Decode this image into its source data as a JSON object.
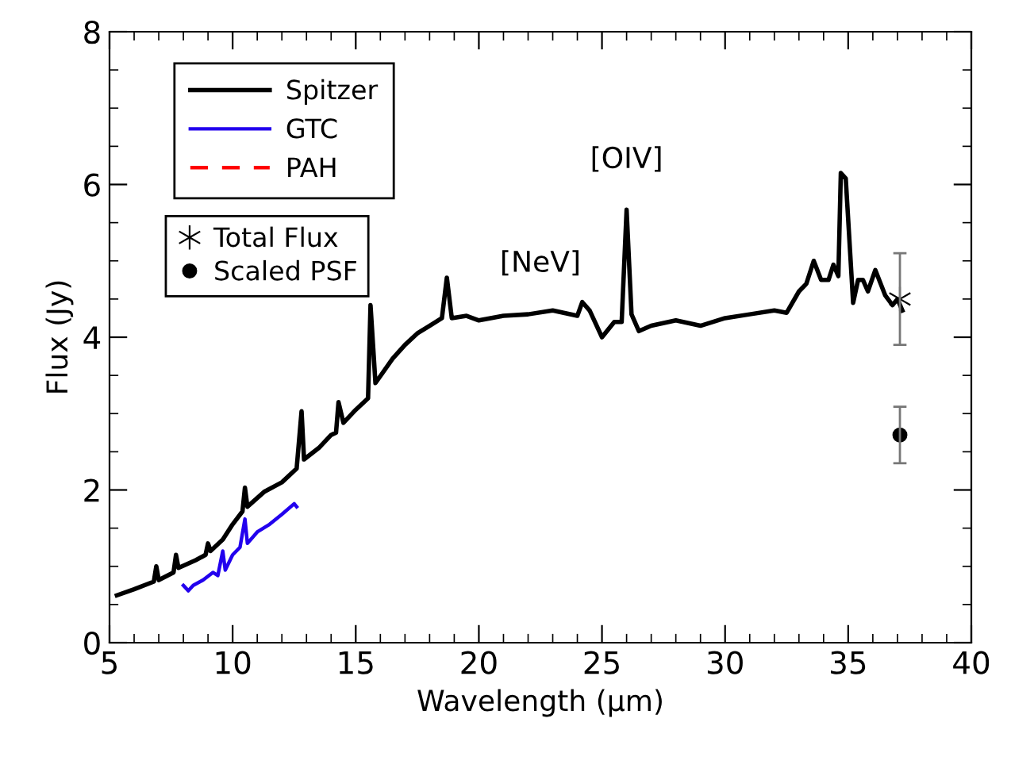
{
  "chart_data": {
    "type": "line",
    "xlabel": "Wavelength (μm)",
    "ylabel": "Flux (Jy)",
    "xlim": [
      5,
      40
    ],
    "xticks": [
      5,
      10,
      15,
      20,
      25,
      30,
      35,
      40
    ],
    "ylim": [
      0,
      8
    ],
    "yticks": [
      0,
      2,
      4,
      6,
      8
    ],
    "grid": false,
    "legend": "top left",
    "line_style": "solid",
    "marker": "none",
    "series": [
      {
        "name": "Spitzer",
        "color": "#000000",
        "x": [
          5.3,
          6.0,
          6.8,
          6.9,
          7.0,
          7.6,
          7.7,
          7.8,
          8.5,
          8.9,
          9.0,
          9.1,
          9.6,
          10.0,
          10.4,
          10.5,
          10.6,
          11.3,
          12.0,
          12.6,
          12.8,
          12.9,
          13.5,
          14.0,
          14.2,
          14.3,
          14.5,
          15.0,
          15.5,
          15.6,
          15.8,
          16.5,
          17.0,
          17.5,
          18.0,
          18.5,
          18.7,
          18.9,
          19.5,
          20.0,
          21.0,
          22.0,
          23.0,
          24.0,
          24.2,
          24.5,
          25.0,
          25.5,
          25.8,
          26.0,
          26.2,
          26.5,
          27.0,
          28.0,
          29.0,
          30.0,
          31.0,
          32.0,
          32.5,
          33.0,
          33.3,
          33.6,
          33.9,
          34.2,
          34.4,
          34.6,
          34.7,
          34.9,
          35.2,
          35.4,
          35.6,
          35.8,
          36.1,
          36.5,
          36.8,
          37.0,
          37.2
        ],
        "values": [
          0.62,
          0.7,
          0.8,
          1.0,
          0.82,
          0.92,
          1.15,
          0.98,
          1.08,
          1.15,
          1.3,
          1.2,
          1.35,
          1.55,
          1.72,
          2.03,
          1.78,
          1.98,
          2.1,
          2.28,
          3.03,
          2.4,
          2.55,
          2.72,
          2.75,
          3.15,
          2.88,
          3.05,
          3.2,
          4.42,
          3.4,
          3.72,
          3.9,
          4.05,
          4.15,
          4.25,
          4.78,
          4.25,
          4.28,
          4.22,
          4.28,
          4.3,
          4.35,
          4.28,
          4.46,
          4.35,
          4.0,
          4.2,
          4.2,
          5.67,
          4.3,
          4.08,
          4.15,
          4.22,
          4.15,
          4.25,
          4.3,
          4.35,
          4.32,
          4.6,
          4.7,
          5.0,
          4.75,
          4.75,
          4.95,
          4.8,
          6.15,
          6.08,
          4.45,
          4.75,
          4.75,
          4.6,
          4.88,
          4.55,
          4.42,
          4.5,
          4.35
        ]
      },
      {
        "name": "GTC",
        "color": "#2200ee",
        "x": [
          8.0,
          8.2,
          8.4,
          8.8,
          9.2,
          9.4,
          9.6,
          9.7,
          10.0,
          10.3,
          10.5,
          10.6,
          11.0,
          11.5,
          12.0,
          12.5,
          12.6
        ],
        "values": [
          0.75,
          0.68,
          0.75,
          0.82,
          0.92,
          0.88,
          1.2,
          0.95,
          1.15,
          1.25,
          1.62,
          1.3,
          1.45,
          1.55,
          1.68,
          1.82,
          1.78
        ]
      },
      {
        "name": "PAH",
        "color": "#ff0000",
        "line_style": "dashed"
      },
      {
        "name": "Total Flux",
        "color": "#000000",
        "type": "scatter",
        "marker": "cross",
        "x": [
          37.1
        ],
        "values": [
          4.5
        ],
        "errors": [
          0.6
        ]
      },
      {
        "name": "Scaled PSF",
        "color": "#000000",
        "type": "scatter",
        "marker": "circle",
        "x": [
          37.1
        ],
        "values": [
          2.72
        ],
        "errors": [
          0.37
        ]
      }
    ],
    "annotations": [
      "[NeV]",
      "[OIV]"
    ]
  }
}
